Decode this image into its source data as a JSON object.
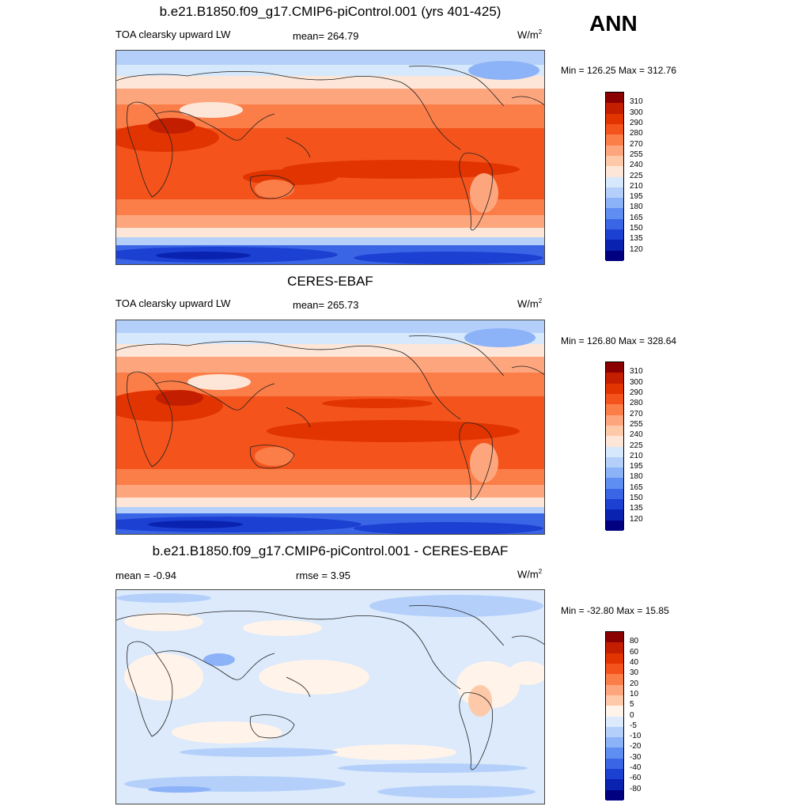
{
  "season": "ANN",
  "panels": [
    {
      "title": "b.e21.B1850.f09_g17.CMIP6-piControl.001 (yrs 401-425)",
      "left_label": "TOA clearsky upward LW",
      "center_label": "mean= 264.79",
      "units": "W/m",
      "units_sup": "2",
      "minmax": "Min = 126.25 Max = 312.76",
      "colorbar": {
        "labels": [
          "310",
          "300",
          "290",
          "280",
          "270",
          "255",
          "240",
          "225",
          "210",
          "195",
          "180",
          "165",
          "150",
          "135",
          "120"
        ],
        "colors": [
          "#8b0000",
          "#c41e00",
          "#e23400",
          "#f4541c",
          "#fb7d48",
          "#fda67d",
          "#fdc9a9",
          "#fde6d7",
          "#d6e8fb",
          "#b4d0fa",
          "#8cb2f7",
          "#5f8ef2",
          "#3a66e6",
          "#1c40d2",
          "#0a22b0",
          "#000080"
        ]
      }
    },
    {
      "title": "CERES-EBAF",
      "left_label": "TOA clearsky upward LW",
      "center_label": "mean= 265.73",
      "units": "W/m",
      "units_sup": "2",
      "minmax": "Min = 126.80 Max = 328.64",
      "colorbar": {
        "labels": [
          "310",
          "300",
          "290",
          "280",
          "270",
          "255",
          "240",
          "225",
          "210",
          "195",
          "180",
          "165",
          "150",
          "135",
          "120"
        ],
        "colors": [
          "#8b0000",
          "#c41e00",
          "#e23400",
          "#f4541c",
          "#fb7d48",
          "#fda67d",
          "#fdc9a9",
          "#fde6d7",
          "#d6e8fb",
          "#b4d0fa",
          "#8cb2f7",
          "#5f8ef2",
          "#3a66e6",
          "#1c40d2",
          "#0a22b0",
          "#000080"
        ]
      }
    },
    {
      "title": "b.e21.B1850.f09_g17.CMIP6-piControl.001 - CERES-EBAF",
      "left_label": "mean =  -0.94",
      "center_label": "rmse =   3.95",
      "units": "W/m",
      "units_sup": "2",
      "minmax": "Min = -32.80 Max =  15.85",
      "colorbar": {
        "labels": [
          "80",
          "60",
          "40",
          "30",
          "20",
          "10",
          "5",
          "0",
          "-5",
          "-10",
          "-20",
          "-30",
          "-40",
          "-60",
          "-80"
        ],
        "colors": [
          "#8b0000",
          "#c41e00",
          "#e23400",
          "#f4541c",
          "#fb7d48",
          "#fda67d",
          "#fdc9a9",
          "#fff3ea",
          "#dceafb",
          "#b4d0fa",
          "#8cb2f7",
          "#5f8ef2",
          "#3a66e6",
          "#1c40d2",
          "#0a22b0",
          "#000080"
        ]
      }
    }
  ]
}
